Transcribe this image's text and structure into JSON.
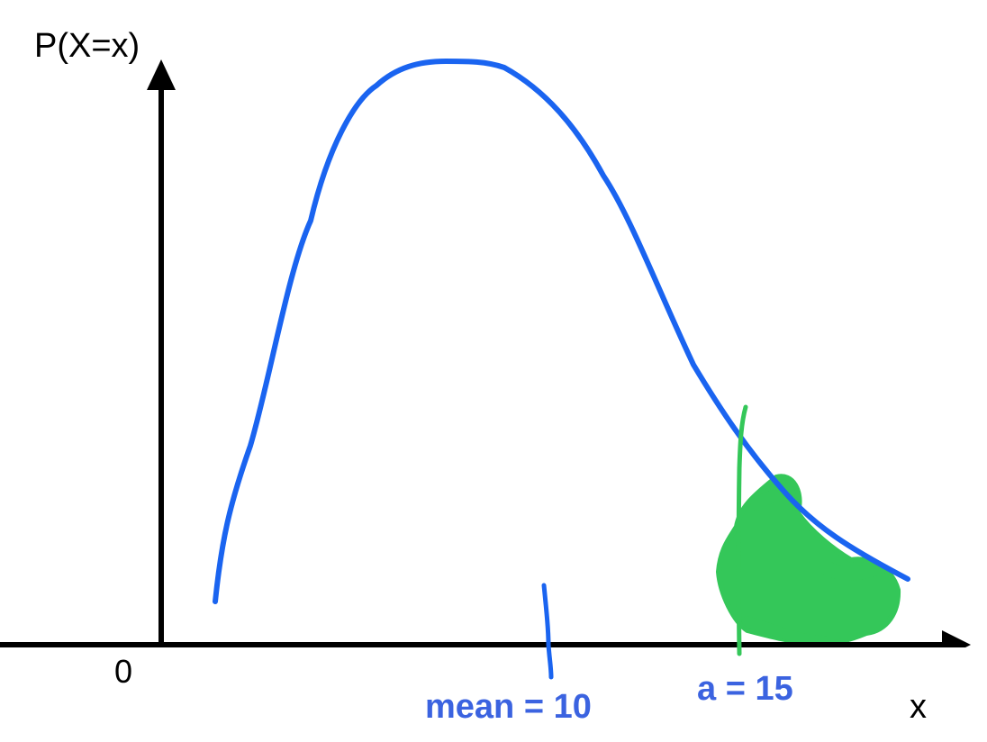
{
  "chart_data": {
    "type": "line",
    "ylabel": "P(X=x)",
    "xlabel": "x",
    "origin_label": "0",
    "annotations": [
      {
        "label": "mean = 10",
        "x": 10
      },
      {
        "label": "a = 15",
        "x": 15,
        "shaded_tail": "right"
      }
    ],
    "colors": {
      "axes": "#000000",
      "curve": "#1a64f0",
      "mean_marker": "#1a64f0",
      "threshold": "#34c759",
      "shading": "#34c759",
      "annotation_text": "#3b63e0"
    },
    "grid": false,
    "legend": "none"
  }
}
